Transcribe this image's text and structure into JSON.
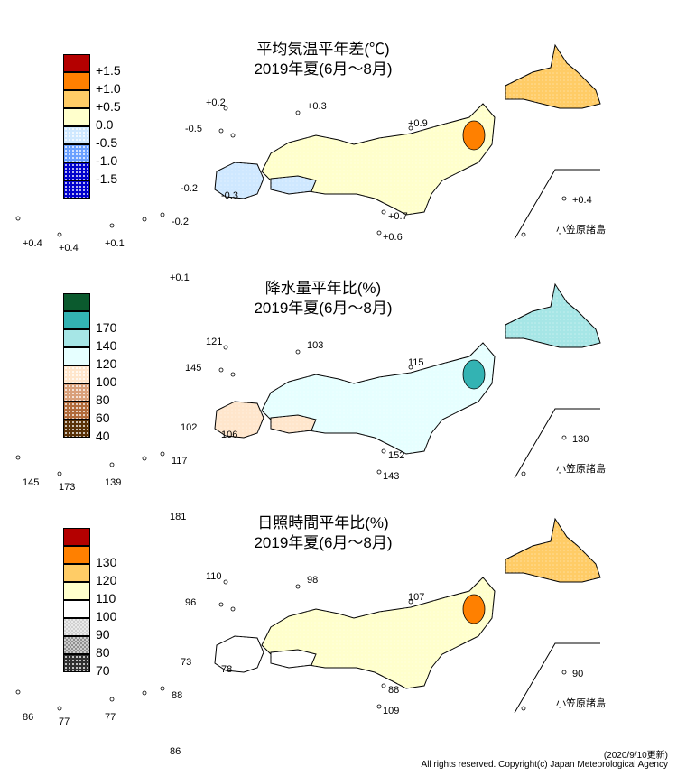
{
  "panels": [
    {
      "id": "temp",
      "title": "平均気温平年差(℃)",
      "period": "2019年夏(6月～8月)",
      "legend": [
        {
          "label": "+1.5",
          "color": "#b40000",
          "pattern": "solid"
        },
        {
          "label": "+1.0",
          "color": "#ff8000",
          "pattern": "solid"
        },
        {
          "label": "+0.5",
          "color": "#ffcc66",
          "pattern": "solid"
        },
        {
          "label": "0.0",
          "color": "#ffffcc",
          "pattern": "solid"
        },
        {
          "label": "-0.5",
          "color": "#cfe8ff",
          "pattern": "dots"
        },
        {
          "label": "-1.0",
          "color": "#6aa0ff",
          "pattern": "dots"
        },
        {
          "label": "-1.5",
          "color": "#0000cc",
          "pattern": "dots"
        },
        {
          "label": "",
          "color": "#0000cc",
          "pattern": "dots"
        }
      ],
      "values": [
        "+0.2",
        "+0.3",
        "-0.5",
        "+0.9",
        "-0.2",
        "-0.3",
        "+0.7",
        "+0.6",
        "-0.2",
        "+0.4",
        "+0.4",
        "+0.1",
        "+0.1",
        "+0.4"
      ],
      "ogasawara": "小笠原諸島"
    },
    {
      "id": "precip",
      "title": "降水量平年比(%)",
      "period": "2019年夏(6月～8月)",
      "legend": [
        {
          "label": "",
          "color": "#0b5a2e",
          "pattern": "solid"
        },
        {
          "label": "170",
          "color": "#33b3b3",
          "pattern": "solid"
        },
        {
          "label": "140",
          "color": "#a6e6e6",
          "pattern": "solid"
        },
        {
          "label": "120",
          "color": "#e6ffff",
          "pattern": "solid"
        },
        {
          "label": "100",
          "color": "#ffe6cc",
          "pattern": "dots"
        },
        {
          "label": "80",
          "color": "#d9a07a",
          "pattern": "dots"
        },
        {
          "label": "60",
          "color": "#b06a3a",
          "pattern": "dots"
        },
        {
          "label": "40",
          "color": "#5a3208",
          "pattern": "dots"
        }
      ],
      "values": [
        "121",
        "103",
        "145",
        "115",
        "102",
        "106",
        "152",
        "143",
        "117",
        "145",
        "173",
        "139",
        "181",
        "130"
      ],
      "ogasawara": "小笠原諸島"
    },
    {
      "id": "sun",
      "title": "日照時間平年比(%)",
      "period": "2019年夏(6月～8月)",
      "legend": [
        {
          "label": "",
          "color": "#b40000",
          "pattern": "solid"
        },
        {
          "label": "130",
          "color": "#ff8000",
          "pattern": "solid"
        },
        {
          "label": "120",
          "color": "#ffcc66",
          "pattern": "solid"
        },
        {
          "label": "110",
          "color": "#ffffcc",
          "pattern": "solid"
        },
        {
          "label": "100",
          "color": "#ffffff",
          "pattern": "dots"
        },
        {
          "label": "90",
          "color": "#d0d0d0",
          "pattern": "checker"
        },
        {
          "label": "80",
          "color": "#909090",
          "pattern": "checker"
        },
        {
          "label": "70",
          "color": "#303030",
          "pattern": "dots"
        }
      ],
      "values": [
        "110",
        "98",
        "96",
        "107",
        "73",
        "78",
        "88",
        "109",
        "88",
        "86",
        "77",
        "77",
        "86",
        "90"
      ],
      "ogasawara": "小笠原諸島"
    }
  ],
  "footer": {
    "updated": "(2020/9/10更新)",
    "copyright": "All rights reserved. Copyright(c) Japan Meteorological Agency"
  }
}
